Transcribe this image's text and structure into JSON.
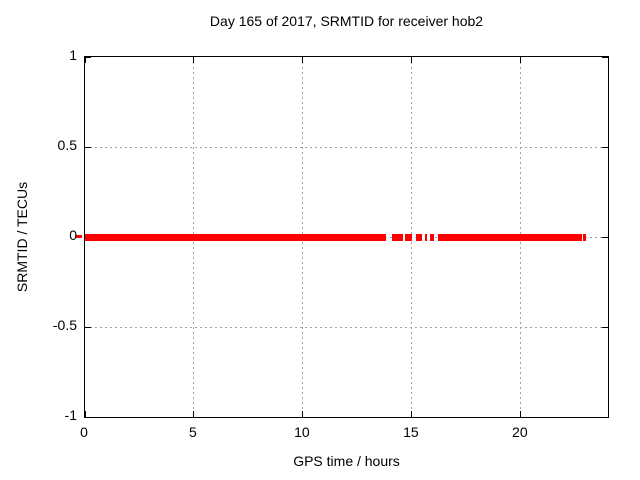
{
  "chart_data": {
    "type": "line",
    "title": "Day 165 of 2017, SRMTID for receiver hob2",
    "xlabel": "GPS time / hours",
    "ylabel": "SRMTID / TECUs",
    "xlim": [
      0,
      24
    ],
    "ylim": [
      -1,
      1
    ],
    "grid": true,
    "legend": "none",
    "xticks": [
      {
        "value": 0,
        "label": "0"
      },
      {
        "value": 5,
        "label": "5"
      },
      {
        "value": 10,
        "label": "10"
      },
      {
        "value": 15,
        "label": "15"
      },
      {
        "value": 20,
        "label": "20"
      }
    ],
    "yticks": [
      {
        "value": -1,
        "label": "-1"
      },
      {
        "value": -0.5,
        "label": "-0.5"
      },
      {
        "value": 0,
        "label": "0"
      },
      {
        "value": 0.5,
        "label": "0.5"
      },
      {
        "value": 1,
        "label": "1"
      }
    ],
    "series": [
      {
        "name": "SRMTID",
        "color": "#ff0000",
        "y_value": 0,
        "segments_hours": [
          [
            0.0,
            13.81
          ],
          [
            14.08,
            14.58
          ],
          [
            14.67,
            14.99
          ],
          [
            15.18,
            15.45
          ],
          [
            15.59,
            15.68
          ],
          [
            15.82,
            16.0
          ],
          [
            16.18,
            22.81
          ],
          [
            22.86,
            22.98
          ]
        ]
      }
    ],
    "colors": {
      "line": "#ff0000",
      "grid": "#a0a0a0",
      "border": "#000000",
      "text": "#000000",
      "background": "#ffffff"
    }
  }
}
